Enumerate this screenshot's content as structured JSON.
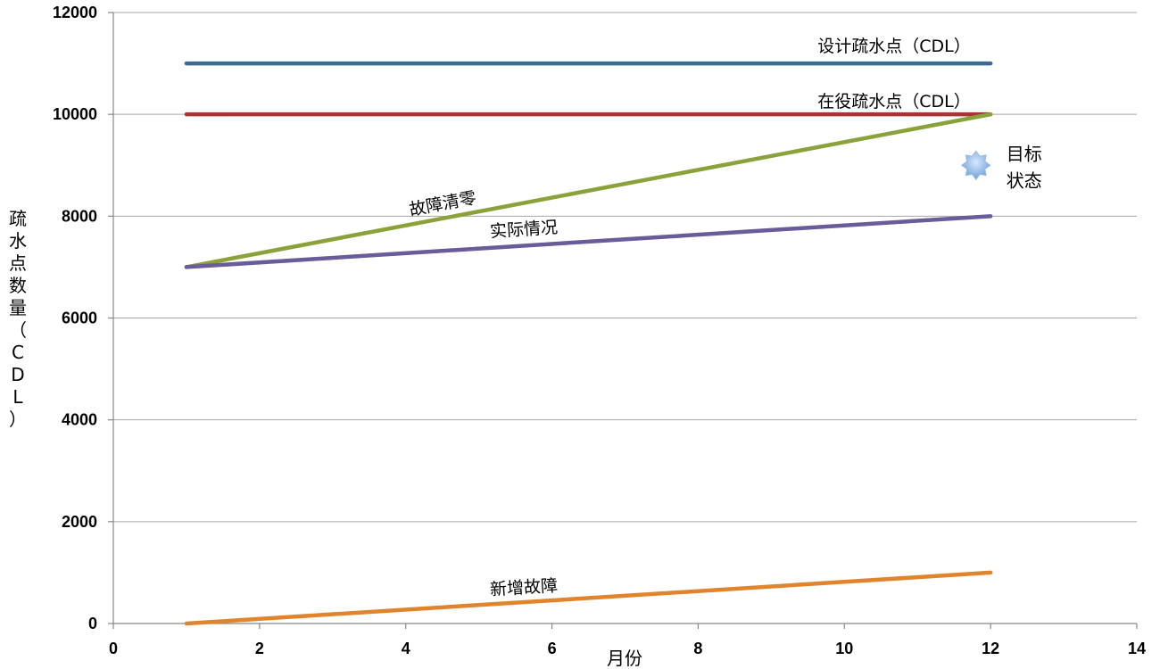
{
  "chart_data": {
    "type": "line",
    "title": "",
    "xlabel": "月份",
    "ylabel": "疏水点数量（CDL）",
    "xlim": [
      0,
      14
    ],
    "ylim": [
      0,
      12000
    ],
    "x_ticks": [
      0,
      2,
      4,
      6,
      8,
      10,
      12,
      14
    ],
    "y_ticks": [
      0,
      2000,
      4000,
      6000,
      8000,
      10000,
      12000
    ],
    "grid": "horizontal",
    "series": [
      {
        "name": "设计疏水点（CDL）",
        "color": "#3c6a93",
        "x": [
          1,
          12
        ],
        "y": [
          11000,
          11000
        ]
      },
      {
        "name": "在役疏水点（CDL）",
        "color": "#a83434",
        "x": [
          1,
          12
        ],
        "y": [
          10000,
          10000
        ]
      },
      {
        "name": "故障清零",
        "color": "#8aa23a",
        "x": [
          1,
          12
        ],
        "y": [
          7000,
          10000
        ]
      },
      {
        "name": "实际情况",
        "color": "#6a5b9a",
        "x": [
          1,
          12
        ],
        "y": [
          7000,
          8000
        ]
      },
      {
        "name": "新增故障",
        "color": "#e0852e",
        "x": [
          1,
          12
        ],
        "y": [
          0,
          1000
        ]
      }
    ],
    "annotations": [
      {
        "text": "目标",
        "x": 12,
        "y": 9000
      },
      {
        "text": "状态",
        "x": 12,
        "y": 9000
      }
    ],
    "marker": {
      "icon": "star-icon",
      "x": 11.8,
      "y": 9000,
      "color": "#6f9fd8"
    }
  }
}
